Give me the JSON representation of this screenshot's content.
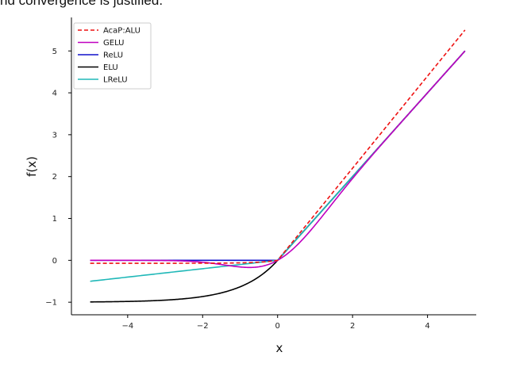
{
  "context": {
    "top_text": "nd convergence is justified.",
    "bottom_text": ""
  },
  "chart_data": {
    "type": "line",
    "xlabel": "x",
    "ylabel": "f(x)",
    "xlim": [
      -5.5,
      5.3
    ],
    "ylim": [
      -1.3,
      5.8
    ],
    "xticks": [
      -4,
      -2,
      0,
      2,
      4
    ],
    "yticks": [
      -1,
      0,
      1,
      2,
      3,
      4,
      5
    ],
    "xtick_labels": [
      "−4",
      "−2",
      "0",
      "2",
      "4"
    ],
    "ytick_labels": [
      "−1",
      "0",
      "1",
      "2",
      "3",
      "4",
      "5"
    ],
    "legend_position": "top-left",
    "x_domain": [
      -5,
      5
    ],
    "series": [
      {
        "name": "AcaP:ALU",
        "color": "#ee1111",
        "dash": true,
        "function": "acapalu"
      },
      {
        "name": "GELU",
        "color": "#c000c0",
        "dash": false,
        "function": "gelu"
      },
      {
        "name": "ReLU",
        "color": "#1010cc",
        "dash": false,
        "function": "relu"
      },
      {
        "name": "ELU",
        "color": "#000000",
        "dash": false,
        "function": "elu"
      },
      {
        "name": "LReLU",
        "color": "#20b8b8",
        "dash": false,
        "function": "lrelu"
      }
    ]
  }
}
